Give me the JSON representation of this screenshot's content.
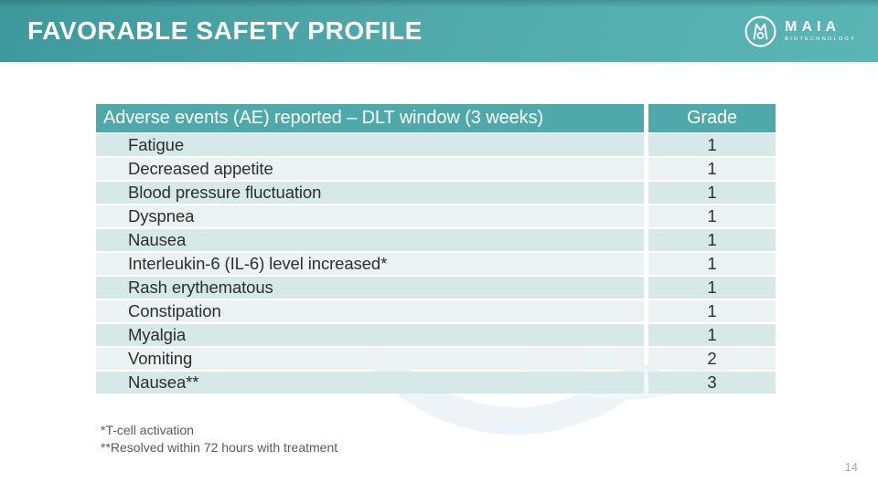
{
  "slide": {
    "title": "FAVORABLE SAFETY PROFILE",
    "page_number": "14",
    "footnotes": [
      "*T-cell activation",
      "**Resolved within 72 hours with treatment"
    ]
  },
  "logo": {
    "brand": "MAIA",
    "sub": "BIOTECHNOLOGY",
    "icon": "maia-m-droplet-circle-icon"
  },
  "table": {
    "columns": [
      "Adverse events (AE) reported – DLT window (3 weeks)",
      "Grade"
    ],
    "rows": [
      {
        "event": "Fatigue",
        "grade": "1"
      },
      {
        "event": "Decreased appetite",
        "grade": "1"
      },
      {
        "event": "Blood pressure fluctuation",
        "grade": "1"
      },
      {
        "event": "Dyspnea",
        "grade": "1"
      },
      {
        "event": "Nausea",
        "grade": "1"
      },
      {
        "event": "Interleukin-6 (IL-6) level increased*",
        "grade": "1"
      },
      {
        "event": "Rash erythematous",
        "grade": "1"
      },
      {
        "event": "Constipation",
        "grade": "1"
      },
      {
        "event": "Myalgia",
        "grade": "1"
      },
      {
        "event": "Vomiting",
        "grade": "2"
      },
      {
        "event": "Nausea**",
        "grade": "3"
      }
    ]
  },
  "colors": {
    "band_teal_dark": "#3d999c",
    "band_teal_light": "#5cb5b5",
    "table_header_bg": "#4fa9ab",
    "row_odd_bg": "#d6e8e7",
    "row_even_bg": "#eaf3f2",
    "row_text": "#2e2e2e",
    "footnote_text": "#595959",
    "page_number_text": "#a9a9a9"
  }
}
